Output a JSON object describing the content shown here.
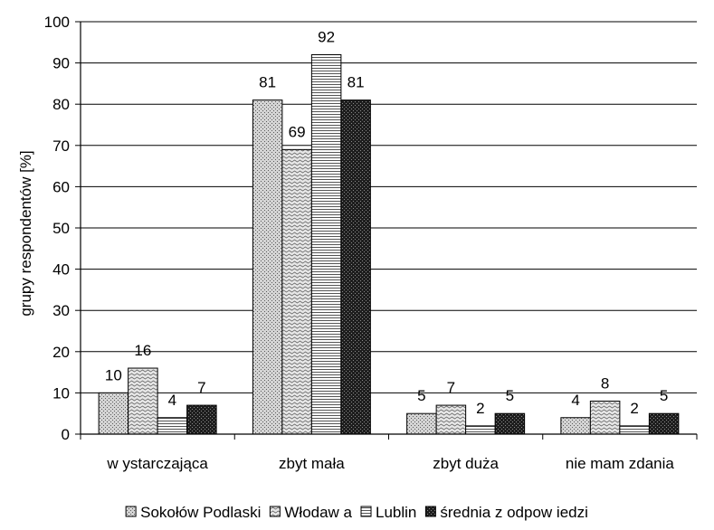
{
  "chart_data": {
    "type": "bar",
    "categories": [
      "w ystarczająca",
      "zbyt mała",
      "zbyt duża",
      "nie mam zdania"
    ],
    "series": [
      {
        "name": "Sokołów  Podlaski",
        "values": [
          10,
          81,
          5,
          4
        ],
        "pattern": "dots"
      },
      {
        "name": "Włodaw a",
        "values": [
          16,
          69,
          7,
          8
        ],
        "pattern": "wave"
      },
      {
        "name": "Lublin",
        "values": [
          4,
          92,
          2,
          2
        ],
        "pattern": "hlines"
      },
      {
        "name": "średnia z odpow iedzi",
        "values": [
          7,
          81,
          5,
          5
        ],
        "pattern": "dark"
      }
    ],
    "ylabel": "grupy respondentów  [%]",
    "xlabel": "",
    "ylim": [
      0,
      100
    ],
    "yticks": [
      0,
      10,
      20,
      30,
      40,
      50,
      60,
      70,
      80,
      90,
      100
    ],
    "grid": true,
    "legend_position": "bottom"
  }
}
